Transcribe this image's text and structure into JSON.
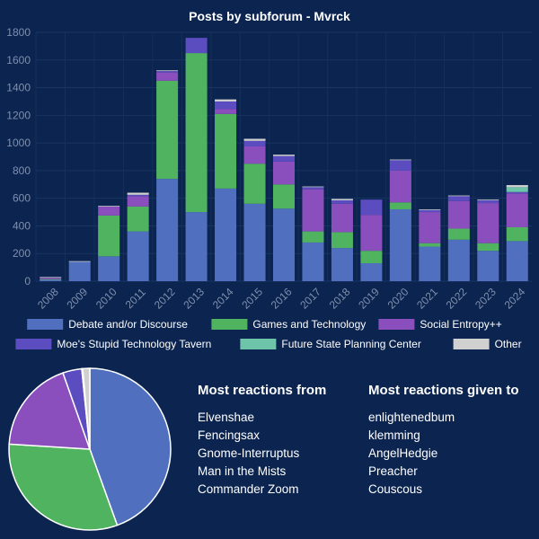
{
  "chart_data": [
    {
      "type": "bar",
      "stacked": true,
      "title": "Posts by subforum - Mvrck",
      "categories": [
        "2008",
        "2009",
        "2010",
        "2011",
        "2012",
        "2013",
        "2014",
        "2015",
        "2016",
        "2017",
        "2018",
        "2019",
        "2020",
        "2021",
        "2022",
        "2023",
        "2024"
      ],
      "ylim": [
        0,
        1800
      ],
      "yticks": [
        0,
        200,
        400,
        600,
        800,
        1000,
        1200,
        1400,
        1600,
        1800
      ],
      "grid": true,
      "legend_position": "bottom",
      "series": [
        {
          "name": "Debate and/or Discourse",
          "color": "#5070bf",
          "values": [
            10,
            140,
            180,
            360,
            740,
            500,
            670,
            560,
            525,
            280,
            240,
            130,
            520,
            250,
            300,
            220,
            290
          ]
        },
        {
          "name": "Games and Technology",
          "color": "#4fb360",
          "values": [
            5,
            0,
            295,
            180,
            710,
            1150,
            540,
            290,
            175,
            80,
            115,
            90,
            50,
            25,
            80,
            55,
            100
          ]
        },
        {
          "name": "Social Entropy++",
          "color": "#8a4fbd",
          "values": [
            10,
            0,
            65,
            75,
            60,
            0,
            35,
            125,
            165,
            305,
            205,
            260,
            230,
            225,
            200,
            290,
            245
          ]
        },
        {
          "name": "Moe's Stupid Technology Tavern",
          "color": "#5b4cc0",
          "values": [
            0,
            0,
            0,
            10,
            10,
            110,
            55,
            40,
            40,
            15,
            25,
            110,
            75,
            15,
            35,
            20,
            10
          ]
        },
        {
          "name": "Future State Planning Center",
          "color": "#6ec4a8",
          "values": [
            0,
            0,
            0,
            0,
            0,
            0,
            0,
            0,
            0,
            0,
            0,
            0,
            0,
            0,
            0,
            0,
            35
          ]
        },
        {
          "name": "Other",
          "color": "#d0d0d0",
          "values": [
            5,
            5,
            5,
            15,
            5,
            0,
            15,
            15,
            10,
            5,
            10,
            0,
            5,
            5,
            5,
            5,
            15
          ]
        }
      ]
    },
    {
      "type": "pie",
      "labels": [
        "Debate and/or Discourse",
        "Games and Technology",
        "Social Entropy++",
        "Moe's Stupid Technology Tavern",
        "Future State Planning Center",
        "Other"
      ],
      "values": [
        44.5,
        31.5,
        18.6,
        3.8,
        0.2,
        1.4
      ],
      "colors": [
        "#5070bf",
        "#4fb360",
        "#8a4fbd",
        "#5b4cc0",
        "#6ec4a8",
        "#d0d0d0"
      ]
    }
  ],
  "reactions_from": {
    "heading": "Most reactions from",
    "names": [
      "Elvenshae",
      "Fencingsax",
      "Gnome-Interruptus",
      "Man in the Mists",
      "Commander Zoom"
    ]
  },
  "reactions_to": {
    "heading": "Most reactions given to",
    "names": [
      "enlightenedbum",
      "klemming",
      "AngelHedgie",
      "Preacher",
      "Couscous"
    ]
  }
}
